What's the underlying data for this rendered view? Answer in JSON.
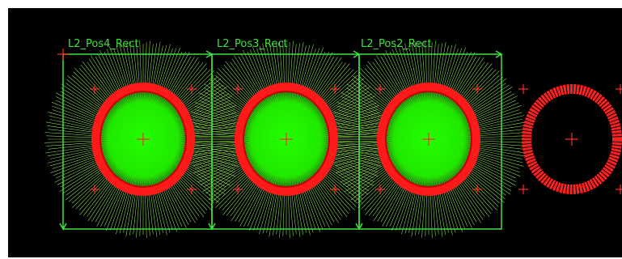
{
  "labels": [
    "L2_Pos4_Rect",
    "L2_Pos3_Rect",
    "L2_Pos2_Rect"
  ]
}
